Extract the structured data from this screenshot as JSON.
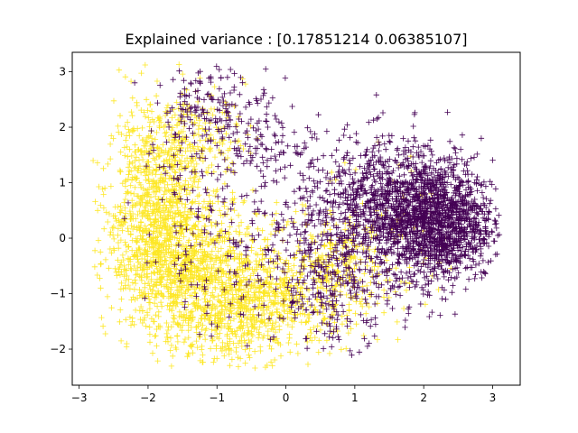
{
  "chart_data": {
    "type": "scatter",
    "title": "Explained variance : [0.17851214 0.06385107]",
    "xlabel": "",
    "ylabel": "",
    "xlim": [
      -3.1,
      3.4
    ],
    "ylim": [
      -2.65,
      3.35
    ],
    "xticks": [
      -3,
      -2,
      -1,
      0,
      1,
      2,
      3
    ],
    "yticks": [
      -2,
      -1,
      0,
      1,
      2,
      3
    ],
    "marker": "plus",
    "grid": false,
    "legend": "none",
    "series": [
      {
        "color": "#fde725",
        "clusters": [
          {
            "cx": -1.9,
            "cy": 0.6,
            "sx": 0.35,
            "sy": 0.85,
            "n": 700
          },
          {
            "cx": -1.5,
            "cy": -0.4,
            "sx": 0.55,
            "sy": 0.6,
            "n": 800
          },
          {
            "cx": -0.9,
            "cy": -1.2,
            "sx": 0.55,
            "sy": 0.55,
            "n": 600
          },
          {
            "cx": -0.1,
            "cy": -1.0,
            "sx": 0.5,
            "sy": 0.55,
            "n": 350
          },
          {
            "cx": 0.7,
            "cy": -0.7,
            "sx": 0.4,
            "sy": 0.5,
            "n": 200
          },
          {
            "cx": -1.4,
            "cy": 1.8,
            "sx": 0.4,
            "sy": 0.45,
            "n": 200
          },
          {
            "cx": 1.4,
            "cy": 0.0,
            "sx": 0.5,
            "sy": 0.7,
            "n": 100
          }
        ]
      },
      {
        "color": "#440154",
        "clusters": [
          {
            "cx": 2.2,
            "cy": 0.3,
            "sx": 0.4,
            "sy": 0.55,
            "n": 1400
          },
          {
            "cx": 1.5,
            "cy": 0.6,
            "sx": 0.45,
            "sy": 0.6,
            "n": 600
          },
          {
            "cx": 0.8,
            "cy": 0.4,
            "sx": 0.5,
            "sy": 0.6,
            "n": 250
          },
          {
            "cx": 0.7,
            "cy": -0.9,
            "sx": 0.45,
            "sy": 0.5,
            "n": 250
          },
          {
            "cx": -1.0,
            "cy": 2.4,
            "sx": 0.4,
            "sy": 0.35,
            "n": 150
          },
          {
            "cx": -0.3,
            "cy": 1.6,
            "sx": 0.5,
            "sy": 0.4,
            "n": 120
          },
          {
            "cx": -0.8,
            "cy": -0.3,
            "sx": 0.6,
            "sy": 0.7,
            "n": 120
          },
          {
            "cx": -1.6,
            "cy": 0.8,
            "sx": 0.4,
            "sy": 0.7,
            "n": 60
          }
        ]
      }
    ]
  }
}
